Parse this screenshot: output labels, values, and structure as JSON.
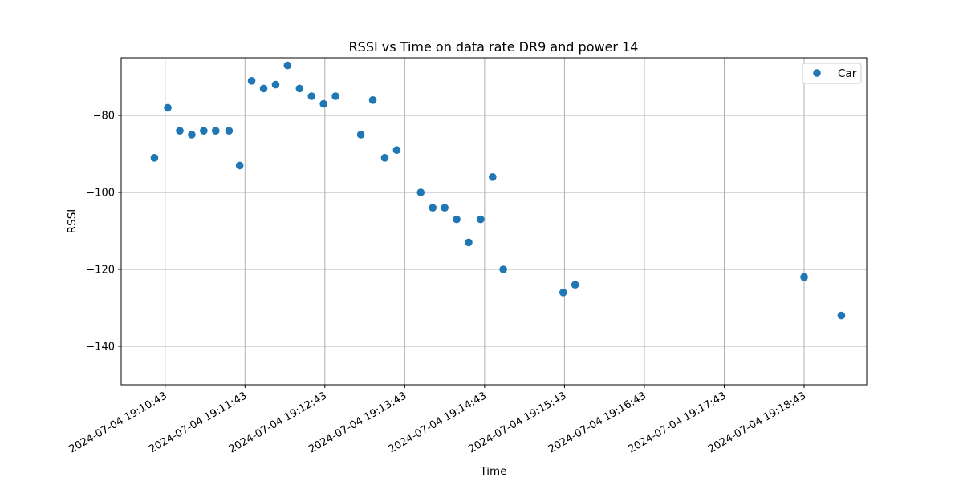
{
  "chart_data": {
    "type": "scatter",
    "title": "RSSI vs Time on data rate DR9 and power 14",
    "xlabel": "Time",
    "ylabel": "RSSI",
    "x_is_time": true,
    "xlim": [
      "2024-07-04 19:10:10",
      "2024-07-04 19:19:30"
    ],
    "ylim": [
      -150,
      -65
    ],
    "x_ticks": [
      "2024-07-04 19:10:43",
      "2024-07-04 19:11:43",
      "2024-07-04 19:12:43",
      "2024-07-04 19:13:43",
      "2024-07-04 19:14:43",
      "2024-07-04 19:15:43",
      "2024-07-04 19:16:43",
      "2024-07-04 19:17:43",
      "2024-07-04 19:18:43"
    ],
    "y_ticks": [
      -80,
      -100,
      -120,
      -140
    ],
    "grid": true,
    "legend_position": "top-right",
    "series": [
      {
        "name": "Car",
        "color": "#1f77b4",
        "marker": "circle",
        "points": [
          {
            "x": "2024-07-04 19:10:35",
            "y": -91
          },
          {
            "x": "2024-07-04 19:10:45",
            "y": -78
          },
          {
            "x": "2024-07-04 19:10:54",
            "y": -84
          },
          {
            "x": "2024-07-04 19:11:03",
            "y": -85
          },
          {
            "x": "2024-07-04 19:11:12",
            "y": -84
          },
          {
            "x": "2024-07-04 19:11:21",
            "y": -84
          },
          {
            "x": "2024-07-04 19:11:31",
            "y": -84
          },
          {
            "x": "2024-07-04 19:11:39",
            "y": -93
          },
          {
            "x": "2024-07-04 19:11:48",
            "y": -71
          },
          {
            "x": "2024-07-04 19:11:57",
            "y": -73
          },
          {
            "x": "2024-07-04 19:12:06",
            "y": -72
          },
          {
            "x": "2024-07-04 19:12:15",
            "y": -67
          },
          {
            "x": "2024-07-04 19:12:24",
            "y": -73
          },
          {
            "x": "2024-07-04 19:12:33",
            "y": -75
          },
          {
            "x": "2024-07-04 19:12:42",
            "y": -77
          },
          {
            "x": "2024-07-04 19:12:51",
            "y": -75
          },
          {
            "x": "2024-07-04 19:13:10",
            "y": -85
          },
          {
            "x": "2024-07-04 19:13:19",
            "y": -76
          },
          {
            "x": "2024-07-04 19:13:28",
            "y": -91
          },
          {
            "x": "2024-07-04 19:13:37",
            "y": -89
          },
          {
            "x": "2024-07-04 19:13:55",
            "y": -100
          },
          {
            "x": "2024-07-04 19:14:04",
            "y": -104
          },
          {
            "x": "2024-07-04 19:14:13",
            "y": -104
          },
          {
            "x": "2024-07-04 19:14:22",
            "y": -107
          },
          {
            "x": "2024-07-04 19:14:31",
            "y": -113
          },
          {
            "x": "2024-07-04 19:14:40",
            "y": -107
          },
          {
            "x": "2024-07-04 19:14:49",
            "y": -96
          },
          {
            "x": "2024-07-04 19:14:57",
            "y": -120
          },
          {
            "x": "2024-07-04 19:15:42",
            "y": -126
          },
          {
            "x": "2024-07-04 19:15:51",
            "y": -124
          },
          {
            "x": "2024-07-04 19:18:43",
            "y": -122
          },
          {
            "x": "2024-07-04 19:19:11",
            "y": -132
          }
        ]
      }
    ]
  }
}
